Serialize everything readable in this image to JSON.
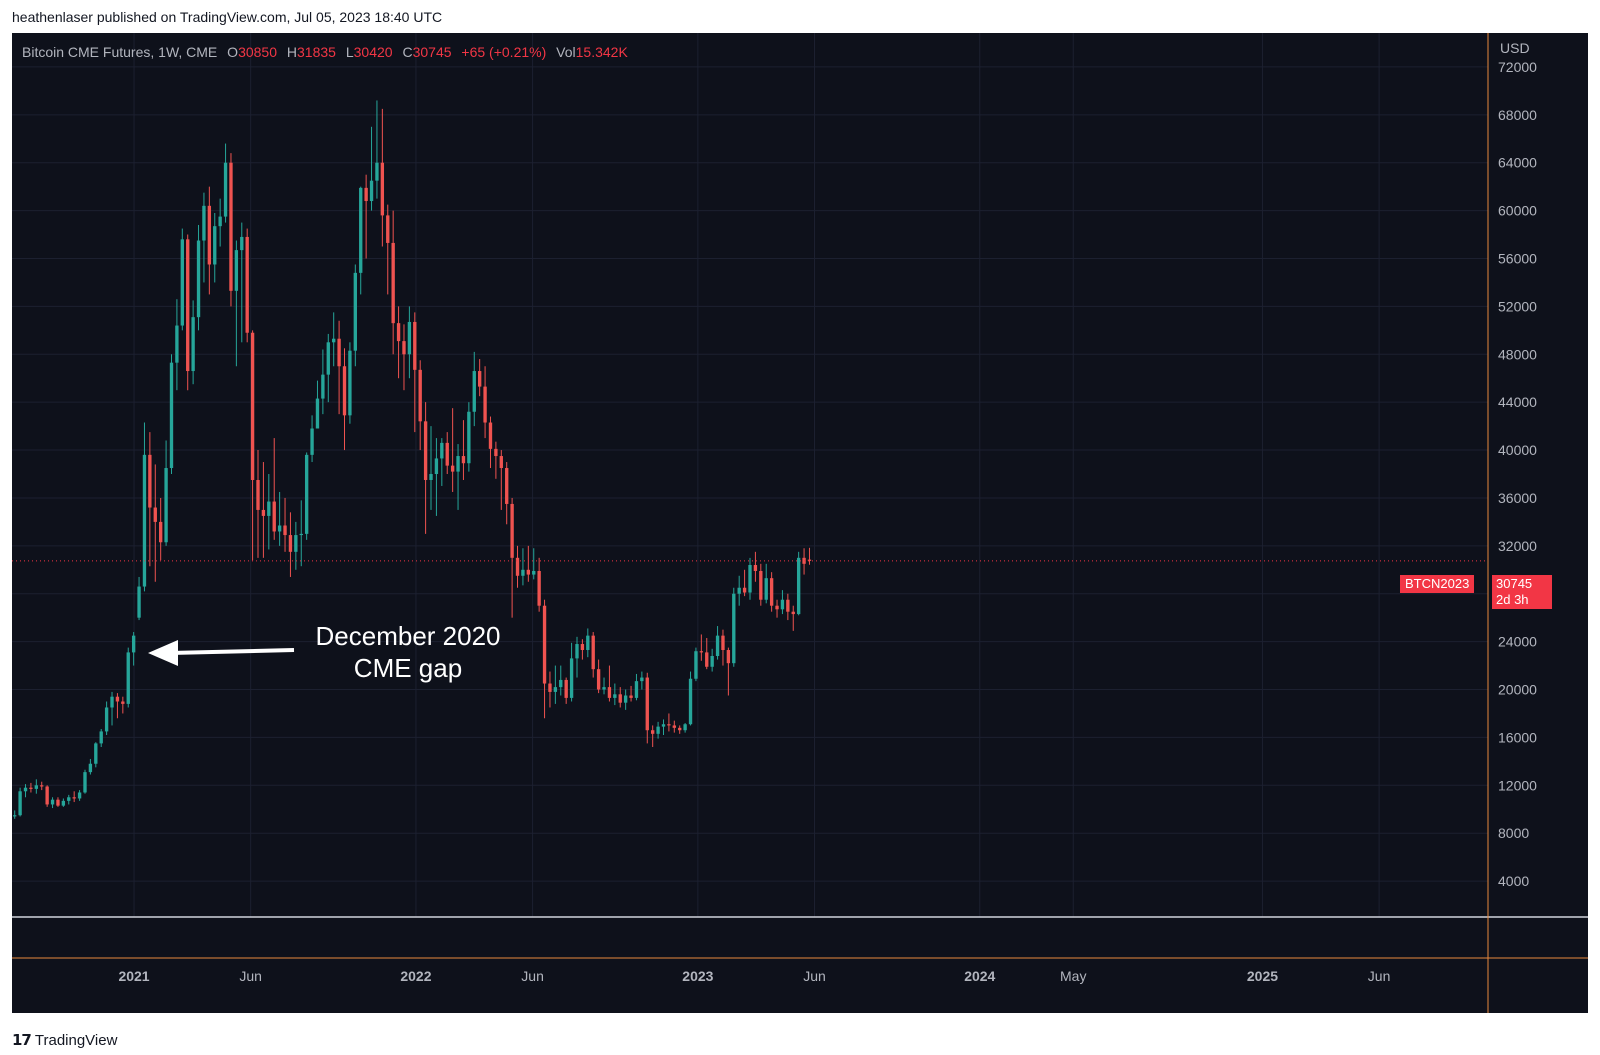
{
  "attribution": "heathenlaser published on TradingView.com, Jul 05, 2023 18:40 UTC",
  "legend": {
    "symbol": "Bitcoin CME Futures, 1W, CME",
    "o_label": "O",
    "o": "30850",
    "h_label": "H",
    "h": "31835",
    "l_label": "L",
    "l": "30420",
    "c_label": "C",
    "c": "30745",
    "change": "+65 (+0.21%)",
    "vol_label": "Vol",
    "vol": "15.342K"
  },
  "currency": "USD",
  "symbol_tag": "BTCN2023",
  "last_price": "30745",
  "countdown": "2d 3h",
  "annotation": {
    "line1": "December 2020",
    "line2": "CME gap"
  },
  "footer_brand": "TradingView",
  "colors": {
    "up": "#26a69a",
    "down": "#ef5350",
    "background": "#0e111b",
    "axis": "#e8893c",
    "last_price": "#f23645"
  },
  "chart_data": {
    "type": "candlestick",
    "timeframe": "1W",
    "x_start": "2020-07-27",
    "y_axis": {
      "ticks": [
        4000,
        8000,
        12000,
        16000,
        20000,
        24000,
        28000,
        32000,
        36000,
        40000,
        44000,
        48000,
        52000,
        56000,
        60000,
        64000,
        68000,
        72000
      ],
      "range": [
        1000,
        74500
      ]
    },
    "x_ticks": [
      {
        "label": "2021",
        "date": "2021-01-01",
        "bold": true
      },
      {
        "label": "Jun",
        "date": "2021-06-01",
        "bold": false
      },
      {
        "label": "2022",
        "date": "2022-01-01",
        "bold": true
      },
      {
        "label": "Jun",
        "date": "2022-06-01",
        "bold": false
      },
      {
        "label": "2023",
        "date": "2023-01-01",
        "bold": true
      },
      {
        "label": "Jun",
        "date": "2023-06-01",
        "bold": false
      },
      {
        "label": "2024",
        "date": "2024-01-01",
        "bold": true
      },
      {
        "label": "May",
        "date": "2024-05-01",
        "bold": false
      },
      {
        "label": "2025",
        "date": "2025-01-01",
        "bold": true
      },
      {
        "label": "Jun",
        "date": "2025-06-01",
        "bold": false
      }
    ],
    "x_range": [
      "2020-07-27",
      "2025-10-20"
    ],
    "last_price_line": 30745,
    "ohlc": [
      [
        9400,
        9900,
        9200,
        9500
      ],
      [
        9500,
        11800,
        9400,
        11500
      ],
      [
        11500,
        12100,
        11000,
        11800
      ],
      [
        11800,
        12200,
        11400,
        11700
      ],
      [
        11700,
        12500,
        11300,
        12000
      ],
      [
        12000,
        12300,
        11600,
        11900
      ],
      [
        11900,
        12000,
        10200,
        10400
      ],
      [
        10400,
        11000,
        10100,
        10800
      ],
      [
        10800,
        11000,
        10200,
        10300
      ],
      [
        10300,
        10900,
        10200,
        10700
      ],
      [
        10700,
        11200,
        10400,
        11000
      ],
      [
        11000,
        11500,
        10600,
        10900
      ],
      [
        10900,
        11600,
        10700,
        11400
      ],
      [
        11400,
        13300,
        11300,
        13100
      ],
      [
        13100,
        14200,
        12900,
        13800
      ],
      [
        13800,
        15600,
        13500,
        15500
      ],
      [
        15500,
        16700,
        15200,
        16500
      ],
      [
        16500,
        19000,
        16200,
        18500
      ],
      [
        18500,
        19800,
        17000,
        19400
      ],
      [
        19400,
        19700,
        17600,
        19000
      ],
      [
        19000,
        19400,
        18000,
        18800
      ],
      [
        18800,
        23500,
        18500,
        23100
      ],
      [
        23100,
        24800,
        22000,
        24500
      ],
      [
        26000,
        29400,
        25800,
        28600
      ],
      [
        28600,
        42300,
        28200,
        39600
      ],
      [
        39600,
        41500,
        30300,
        35200
      ],
      [
        35200,
        38800,
        29000,
        34000
      ],
      [
        34000,
        36000,
        30800,
        32300
      ],
      [
        32300,
        40800,
        32000,
        38500
      ],
      [
        38500,
        48000,
        38000,
        47300
      ],
      [
        47300,
        52600,
        45000,
        50400
      ],
      [
        50400,
        58500,
        50000,
        57600
      ],
      [
        57600,
        58000,
        45000,
        46600
      ],
      [
        46600,
        52500,
        45500,
        51100
      ],
      [
        51100,
        58800,
        50000,
        57500
      ],
      [
        57500,
        61500,
        54000,
        60400
      ],
      [
        60400,
        62000,
        53000,
        55500
      ],
      [
        55500,
        59800,
        54000,
        58700
      ],
      [
        58700,
        61000,
        57000,
        59500
      ],
      [
        59500,
        65600,
        59000,
        64000
      ],
      [
        64000,
        64800,
        52000,
        53300
      ],
      [
        53300,
        57500,
        47000,
        56700
      ],
      [
        56700,
        59000,
        49000,
        57800
      ],
      [
        57800,
        58500,
        49000,
        49800
      ],
      [
        49800,
        50000,
        30800,
        37500
      ],
      [
        37500,
        40000,
        31000,
        35000
      ],
      [
        35000,
        39000,
        31000,
        34500
      ],
      [
        34500,
        38000,
        31700,
        35700
      ],
      [
        35700,
        41000,
        32500,
        33200
      ],
      [
        33200,
        36500,
        32000,
        33700
      ],
      [
        33700,
        36000,
        31500,
        32900
      ],
      [
        32900,
        34800,
        29400,
        31500
      ],
      [
        31500,
        34000,
        30000,
        32900
      ],
      [
        32900,
        35800,
        30300,
        33000
      ],
      [
        33000,
        39800,
        32500,
        39600
      ],
      [
        39600,
        42900,
        39000,
        41800
      ],
      [
        41800,
        45800,
        42000,
        44300
      ],
      [
        44300,
        48400,
        43000,
        46300
      ],
      [
        46300,
        49700,
        44000,
        49000
      ],
      [
        49000,
        51500,
        47000,
        49300
      ],
      [
        49300,
        50800,
        43000,
        47000
      ],
      [
        47000,
        48500,
        40000,
        42900
      ],
      [
        42900,
        49000,
        42200,
        48300
      ],
      [
        48300,
        55500,
        47000,
        54800
      ],
      [
        54800,
        62000,
        53000,
        61900
      ],
      [
        61900,
        63000,
        56000,
        60800
      ],
      [
        60800,
        67000,
        60000,
        62500
      ],
      [
        62500,
        69200,
        61000,
        64000
      ],
      [
        64000,
        68500,
        57000,
        59600
      ],
      [
        59600,
        60500,
        53000,
        57300
      ],
      [
        57300,
        60000,
        48000,
        50600
      ],
      [
        50600,
        52000,
        46000,
        49100
      ],
      [
        49100,
        50500,
        45000,
        48000
      ],
      [
        48000,
        52000,
        46000,
        50700
      ],
      [
        50700,
        51500,
        41500,
        46700
      ],
      [
        46700,
        47500,
        40000,
        42400
      ],
      [
        42400,
        44000,
        33000,
        37500
      ],
      [
        37500,
        42000,
        35000,
        38000
      ],
      [
        38000,
        41000,
        34500,
        39300
      ],
      [
        39300,
        41000,
        37000,
        40600
      ],
      [
        40600,
        41500,
        38000,
        38700
      ],
      [
        38700,
        43500,
        36500,
        38200
      ],
      [
        38200,
        40500,
        35000,
        39500
      ],
      [
        39500,
        42500,
        37500,
        38900
      ],
      [
        38900,
        44000,
        38200,
        43200
      ],
      [
        43200,
        48200,
        42000,
        46600
      ],
      [
        46600,
        47600,
        44500,
        45300
      ],
      [
        45300,
        47000,
        41000,
        42300
      ],
      [
        42300,
        42800,
        38500,
        40100
      ],
      [
        40100,
        40700,
        37600,
        39500
      ],
      [
        39500,
        40000,
        35000,
        38500
      ],
      [
        38500,
        39000,
        33800,
        35500
      ],
      [
        35500,
        36000,
        26000,
        31000
      ],
      [
        31000,
        32000,
        28500,
        29500
      ],
      [
        29500,
        31800,
        28700,
        30000
      ],
      [
        30000,
        32000,
        29000,
        29600
      ],
      [
        29600,
        31800,
        29200,
        29900
      ],
      [
        29900,
        31000,
        26500,
        27000
      ],
      [
        27000,
        27500,
        17600,
        20500
      ],
      [
        20500,
        21500,
        18500,
        19800
      ],
      [
        19800,
        22000,
        18800,
        20200
      ],
      [
        20200,
        22000,
        19500,
        20800
      ],
      [
        20800,
        21000,
        18800,
        19300
      ],
      [
        19300,
        23900,
        19000,
        22600
      ],
      [
        22600,
        24400,
        21000,
        23800
      ],
      [
        23800,
        24200,
        22500,
        23300
      ],
      [
        23300,
        25100,
        22700,
        24500
      ],
      [
        24500,
        24800,
        21000,
        21700
      ],
      [
        21700,
        22500,
        19700,
        20000
      ],
      [
        20000,
        21000,
        19600,
        20200
      ],
      [
        20200,
        22000,
        19000,
        19300
      ],
      [
        19300,
        20500,
        18700,
        19600
      ],
      [
        19600,
        20200,
        18500,
        18900
      ],
      [
        18900,
        20000,
        18300,
        19500
      ],
      [
        19500,
        20300,
        19000,
        19300
      ],
      [
        19300,
        21300,
        19100,
        20700
      ],
      [
        20700,
        21500,
        20000,
        21000
      ],
      [
        21000,
        21400,
        15500,
        16600
      ],
      [
        16600,
        17000,
        15200,
        16300
      ],
      [
        16300,
        17300,
        15900,
        16900
      ],
      [
        16900,
        17500,
        16200,
        17100
      ],
      [
        17100,
        18000,
        16500,
        17000
      ],
      [
        17000,
        17400,
        16400,
        16800
      ],
      [
        16800,
        17000,
        16300,
        16600
      ],
      [
        16600,
        17200,
        16400,
        17100
      ],
      [
        17100,
        21500,
        17000,
        20900
      ],
      [
        20900,
        23500,
        20700,
        23200
      ],
      [
        23200,
        24600,
        22400,
        23100
      ],
      [
        23100,
        24300,
        21700,
        21900
      ],
      [
        21900,
        23400,
        21500,
        22800
      ],
      [
        22800,
        25300,
        22500,
        24500
      ],
      [
        24500,
        25000,
        22000,
        23300
      ],
      [
        23300,
        23500,
        19500,
        22200
      ],
      [
        22200,
        28500,
        21900,
        28000
      ],
      [
        28000,
        29500,
        27000,
        28500
      ],
      [
        28500,
        30000,
        27800,
        28100
      ],
      [
        28100,
        31000,
        27500,
        30400
      ],
      [
        30400,
        31500,
        29000,
        29900
      ],
      [
        29900,
        30500,
        27000,
        27500
      ],
      [
        27500,
        30500,
        27200,
        29300
      ],
      [
        29300,
        29800,
        26500,
        27000
      ],
      [
        27000,
        27500,
        26000,
        26700
      ],
      [
        26700,
        28300,
        26300,
        27500
      ],
      [
        27500,
        28000,
        25800,
        26500
      ],
      [
        26500,
        27000,
        24900,
        26300
      ],
      [
        26300,
        31500,
        26200,
        31000
      ],
      [
        31000,
        31800,
        29600,
        30500
      ],
      [
        30850,
        31835,
        30420,
        30745
      ]
    ]
  }
}
